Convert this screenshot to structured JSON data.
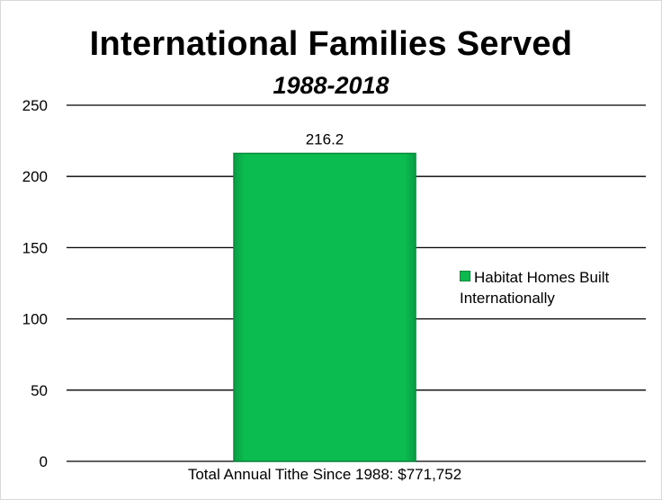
{
  "chart_data": {
    "type": "bar",
    "title": "International Families Served",
    "subtitle": "1988-2018",
    "categories": [
      "Total Annual Tithe Since 1988: $771,752"
    ],
    "series": [
      {
        "name": "Habitat Homes Built Internationally",
        "values": [
          216.2
        ]
      }
    ],
    "data_labels": [
      "216.2"
    ],
    "ylim": [
      0,
      250
    ],
    "yticks": [
      0,
      50,
      100,
      150,
      200,
      250
    ],
    "grid": true,
    "legend_position": "right",
    "bar_color": "#0bb94f"
  }
}
